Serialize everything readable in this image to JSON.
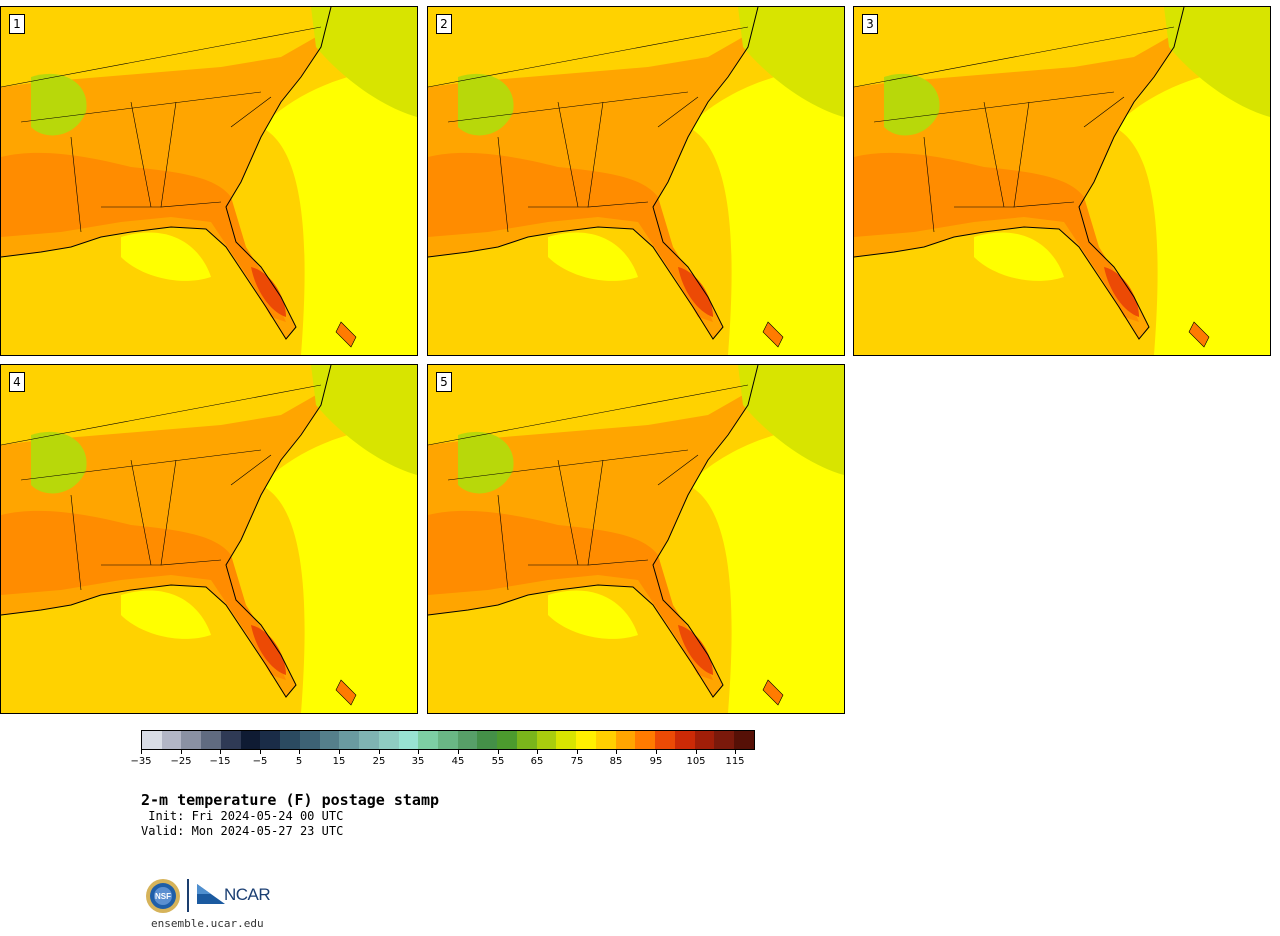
{
  "panels": [
    {
      "label": "1"
    },
    {
      "label": "2"
    },
    {
      "label": "3"
    },
    {
      "label": "4"
    },
    {
      "label": "5"
    }
  ],
  "colorbar": {
    "colors": [
      "#d9dde6",
      "#b2b6c6",
      "#8a91a3",
      "#606b80",
      "#2f3a55",
      "#0f1b33",
      "#1a2c47",
      "#2b4a60",
      "#3d6275",
      "#557f8b",
      "#6a9aa0",
      "#7fb3b2",
      "#8fcbc1",
      "#98e3d2",
      "#7dcfa4",
      "#6ab785",
      "#579f68",
      "#449048",
      "#4c9b2e",
      "#7ab51b",
      "#a9cd0e",
      "#d8e400",
      "#fff000",
      "#ffd000",
      "#ffa500",
      "#ff7b00",
      "#ec4a05",
      "#cc2a06",
      "#a11e08",
      "#7a190b",
      "#561006"
    ],
    "tick_labels": [
      "−35",
      "−25",
      "−15",
      "−5",
      "5",
      "15",
      "25",
      "35",
      "45",
      "55",
      "65",
      "75",
      "85",
      "95",
      "105",
      "115"
    ]
  },
  "title": "2-m temperature (F) postage stamp",
  "init": " Init: Fri 2024-05-24 00 UTC",
  "valid": "Valid: Mon 2024-05-27 23 UTC",
  "logos": {
    "nsf": "NSF",
    "ncar": "NCAR"
  },
  "site": "ensemble.ucar.edu"
}
